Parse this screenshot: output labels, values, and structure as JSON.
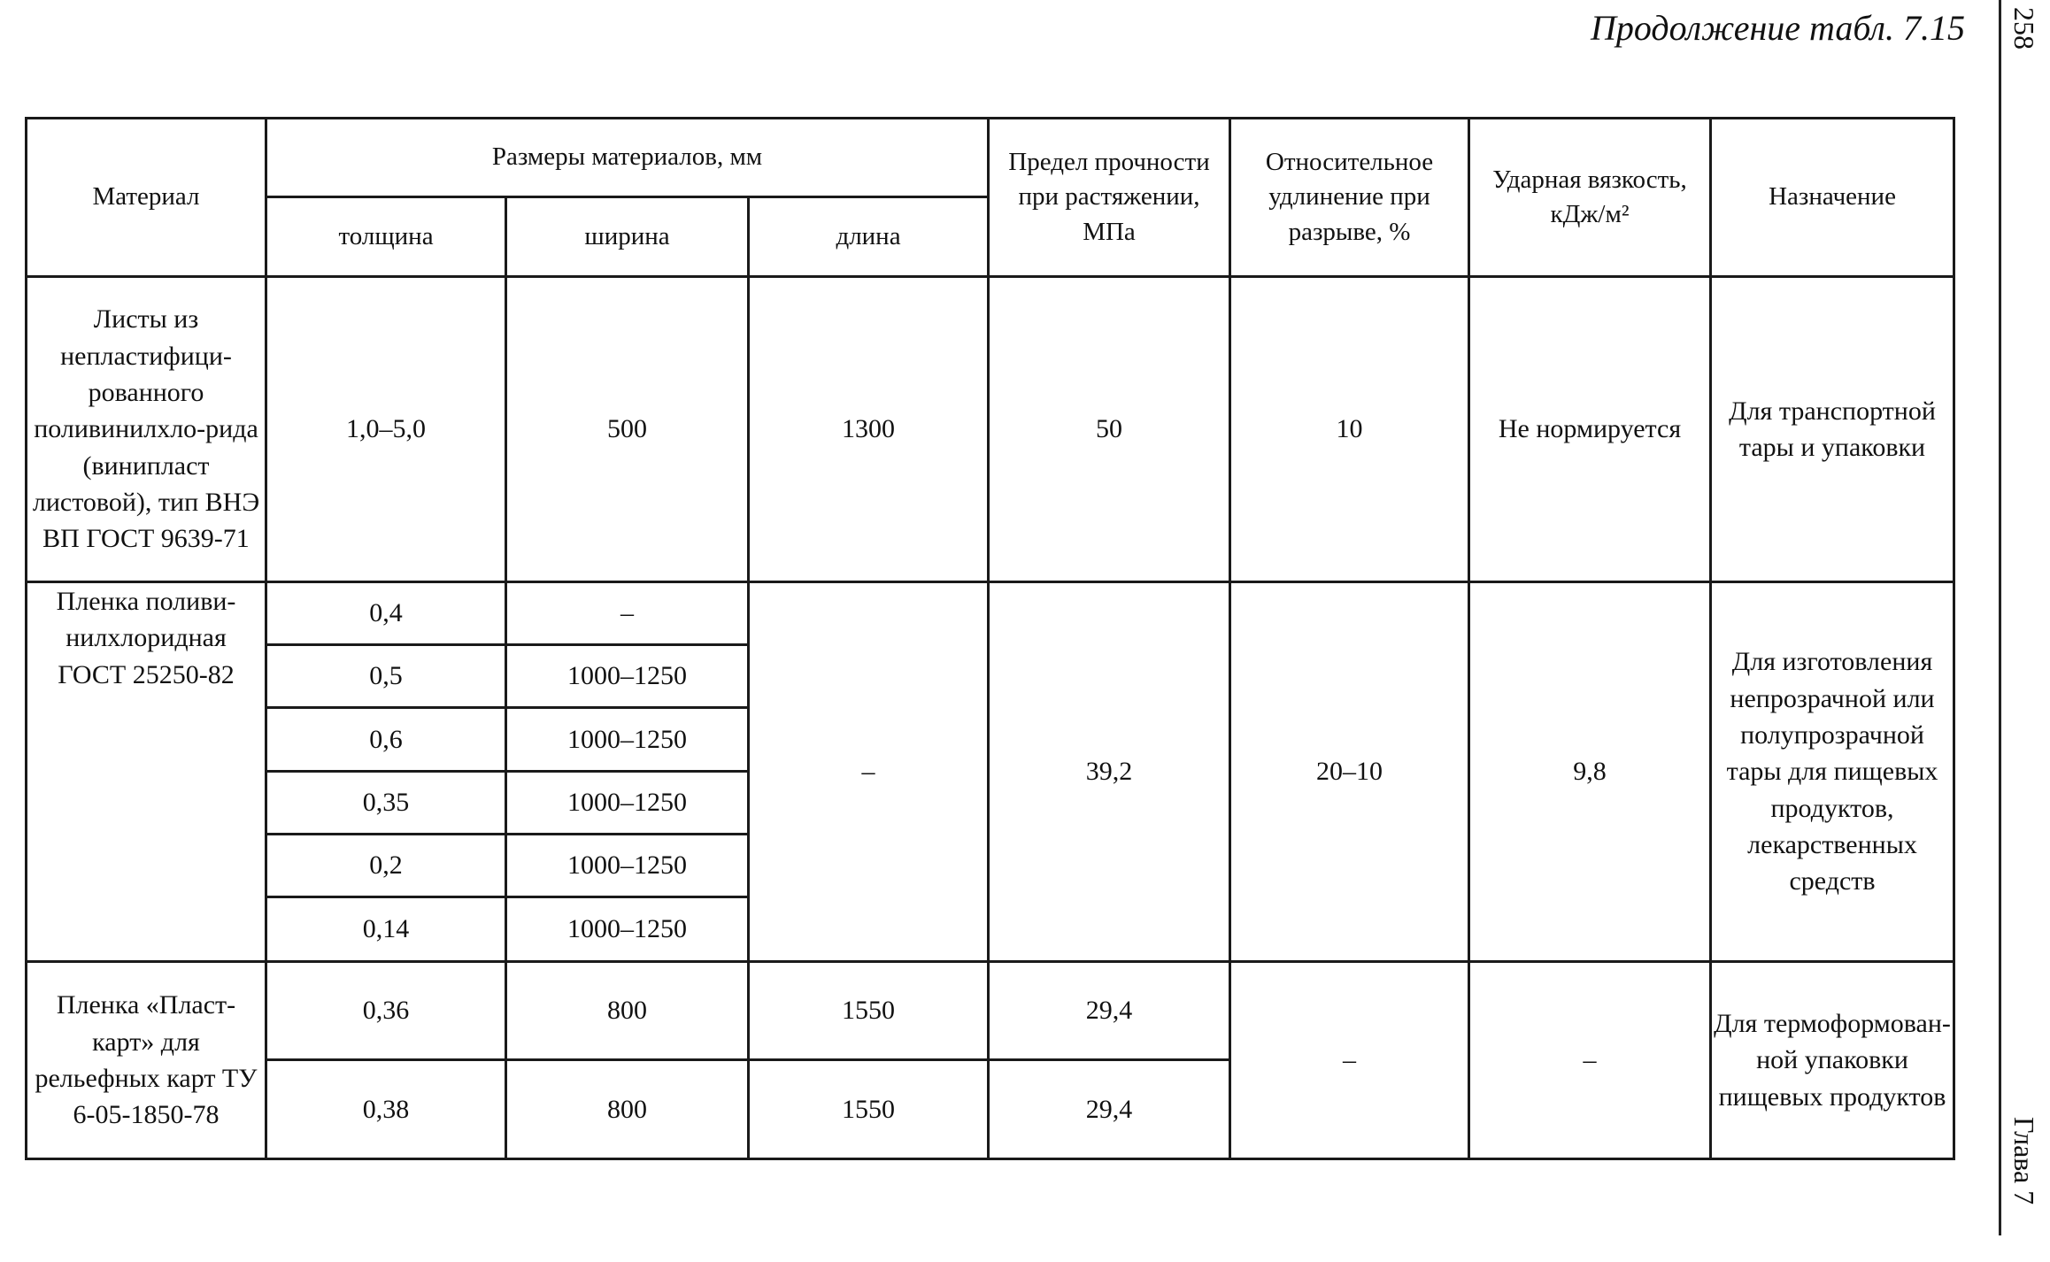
{
  "header": {
    "title": "Продолжение табл. 7.15",
    "page_number": "258",
    "chapter": "Глава 7"
  },
  "table": {
    "headers": {
      "material": "Материал",
      "sizes": "Размеры материалов, мм",
      "thickness": "толщина",
      "width": "ширина",
      "length": "длина",
      "strength": "Предел прочности при растяжении, МПа",
      "elongation": "Относительное удлинение при разрыве, %",
      "impact": "Ударная вязкость, кДж/м²",
      "purpose": "Назначение"
    },
    "groups": [
      {
        "material": "Листы из непластифици-рованного поливинилхло-рида (винипласт листовой), тип ВНЭ ВП ГОСТ 9639-71",
        "rows": [
          {
            "thickness": "1,0–5,0",
            "width": "500"
          }
        ],
        "length": "1300",
        "strength": "50",
        "elongation": "10",
        "impact": "Не нормируется",
        "purpose": "Для транспортной тары и упаковки"
      },
      {
        "material": "Пленка поливи-нилхлоридная ГОСТ 25250-82",
        "rows": [
          {
            "thickness": "0,4",
            "width": "–"
          },
          {
            "thickness": "0,5",
            "width": "1000–1250"
          },
          {
            "thickness": "0,6",
            "width": "1000–1250"
          },
          {
            "thickness": "0,35",
            "width": "1000–1250"
          },
          {
            "thickness": "0,2",
            "width": "1000–1250"
          },
          {
            "thickness": "0,14",
            "width": "1000–1250"
          }
        ],
        "length": "–",
        "strength": "39,2",
        "elongation": "20–10",
        "impact": "9,8",
        "purpose": "Для изготовления непрозрачной или полупрозрачной тары для пищевых продуктов, лекарственных средств"
      },
      {
        "material": "Пленка «Пласт-карт» для рельефных карт ТУ 6-05-1850-78",
        "rows": [
          {
            "thickness": "0,36",
            "width": "800",
            "length": "1550",
            "strength": "29,4"
          },
          {
            "thickness": "0,38",
            "width": "800",
            "length": "1550",
            "strength": "29,4"
          }
        ],
        "elongation": "–",
        "impact": "–",
        "purpose": "Для термоформован-ной упаковки пищевых продуктов"
      }
    ]
  }
}
